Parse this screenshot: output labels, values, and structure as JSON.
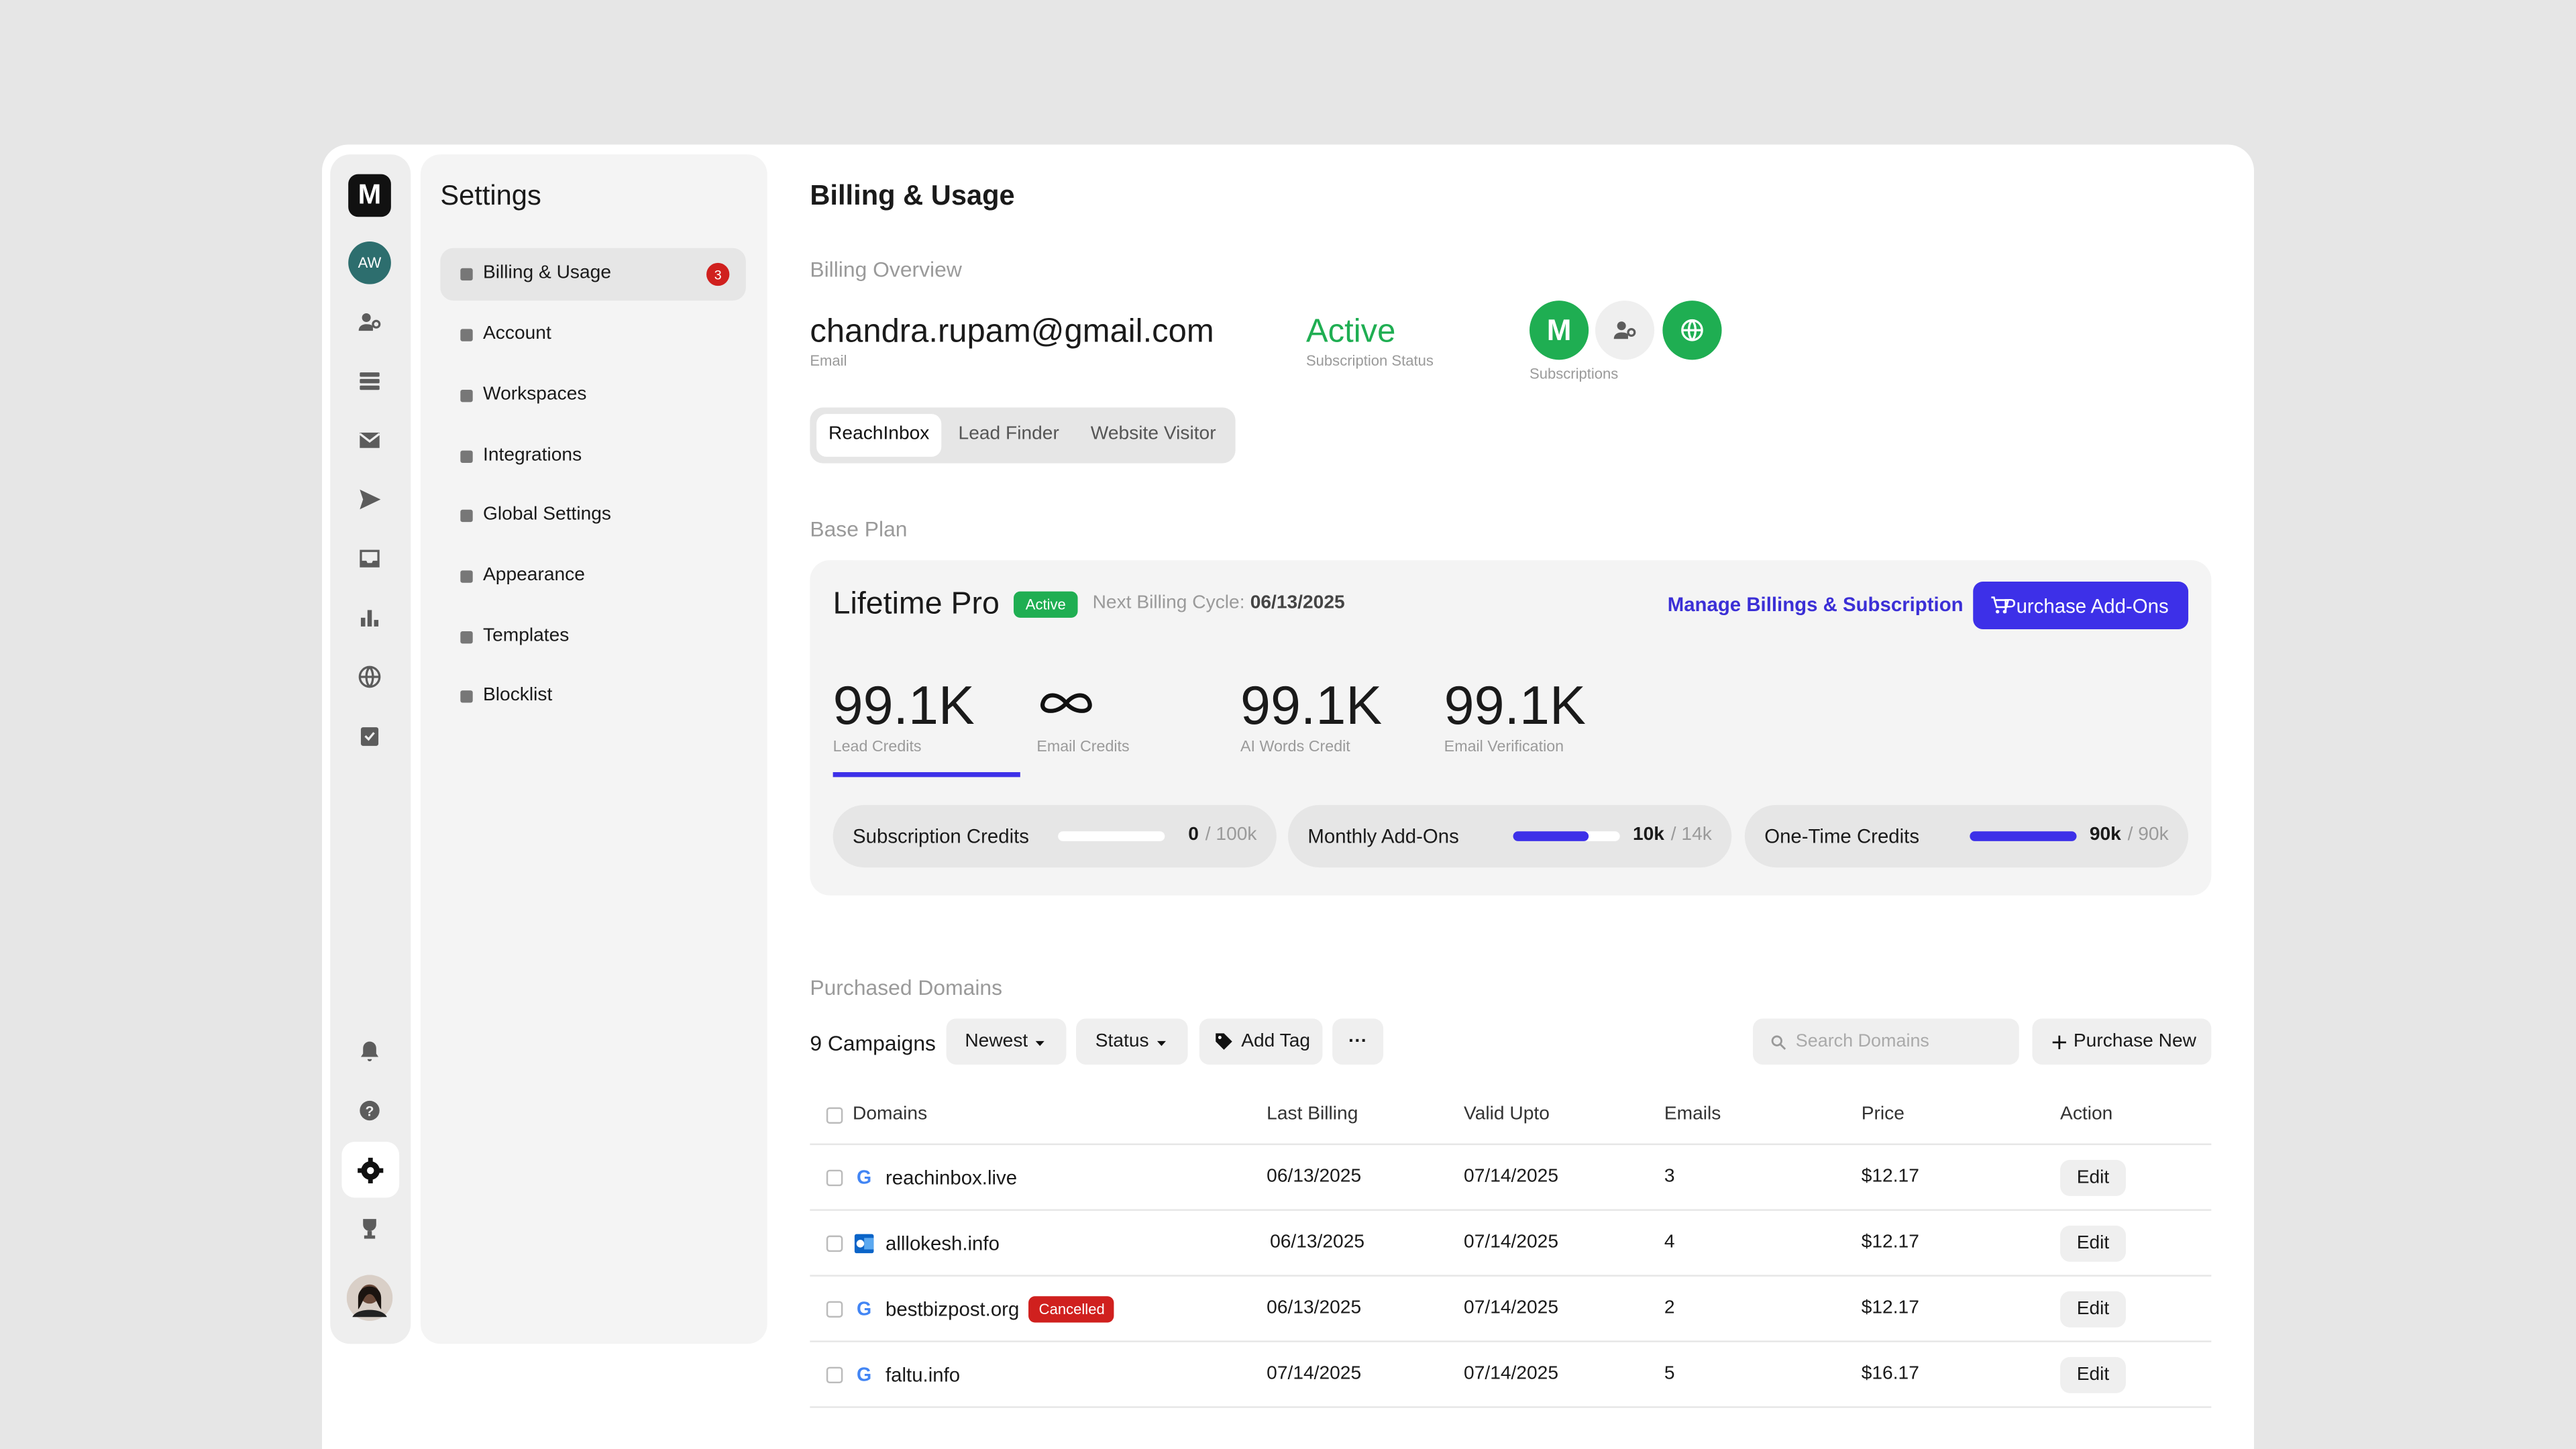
{
  "rail": {
    "logo": "M",
    "avatar": "AW"
  },
  "settings": {
    "title": "Settings",
    "items": [
      {
        "label": "Billing & Usage",
        "badge": "3"
      },
      {
        "label": "Account"
      },
      {
        "label": "Workspaces"
      },
      {
        "label": "Integrations"
      },
      {
        "label": "Global Settings"
      },
      {
        "label": "Appearance"
      },
      {
        "label": "Templates"
      },
      {
        "label": "Blocklist"
      }
    ]
  },
  "header": {
    "title": "Billing & Usage"
  },
  "overview": {
    "heading": "Billing Overview",
    "email": "chandra.rupam@gmail.com",
    "email_label": "Email",
    "status": "Active",
    "status_label": "Subscription Status",
    "subscription_logo": "M",
    "subscriptions_label": "Subscriptions",
    "tabs": [
      "ReachInbox",
      "Lead Finder",
      "Website Visitor"
    ]
  },
  "base_plan": {
    "heading": "Base Plan",
    "name": "Lifetime Pro",
    "badge": "Active",
    "billing_label": "Next Billing Cycle:",
    "billing_date": "06/13/2025",
    "manage": "Manage Billings & Subscription",
    "purchase": "Purchase Add-Ons",
    "stats": [
      {
        "value": "99.1K",
        "label": "Lead Credits"
      },
      {
        "label": "Email Credits"
      },
      {
        "value": "99.1K",
        "label": "AI Words Credit"
      },
      {
        "value": "99.1K",
        "label": "Email Verification"
      }
    ],
    "credits": [
      {
        "label": "Subscription Credits",
        "used": "0",
        "total": "/ 100k"
      },
      {
        "label": "Monthly Add-Ons",
        "used": "10k",
        "total": "/ 14k"
      },
      {
        "label": "One-Time Credits",
        "used": "90k",
        "total": "/ 90k"
      }
    ]
  },
  "domains": {
    "heading": "Purchased Domains",
    "count": "9 Campaigns",
    "filters": [
      "Newest",
      "Status"
    ],
    "add_tag": "Add Tag",
    "more": "···",
    "search_placeholder": "Search Domains",
    "purchase_new": "Purchase New",
    "columns": [
      "Domains",
      "Last Billing",
      "Valid Upto",
      "Emails",
      "Price",
      "Action"
    ],
    "rows": [
      {
        "domain": "reachinbox.live",
        "last_billing": "06/13/2025",
        "valid_upto": "07/14/2025",
        "emails": "3",
        "price": "$12.17",
        "action": "Edit"
      },
      {
        "domain": "alllokesh.info",
        "last_billing": "06/13/2025",
        "valid_upto": "07/14/2025",
        "emails": "4",
        "price": "$12.17",
        "action": "Edit"
      },
      {
        "domain": "bestbizpost.org",
        "tag": "Cancelled",
        "last_billing": "06/13/2025",
        "valid_upto": "07/14/2025",
        "emails": "2",
        "price": "$12.17",
        "action": "Edit"
      },
      {
        "domain": "faltu.info",
        "last_billing": "07/14/2025",
        "valid_upto": "07/14/2025",
        "emails": "5",
        "price": "$16.17",
        "action": "Edit"
      }
    ]
  }
}
